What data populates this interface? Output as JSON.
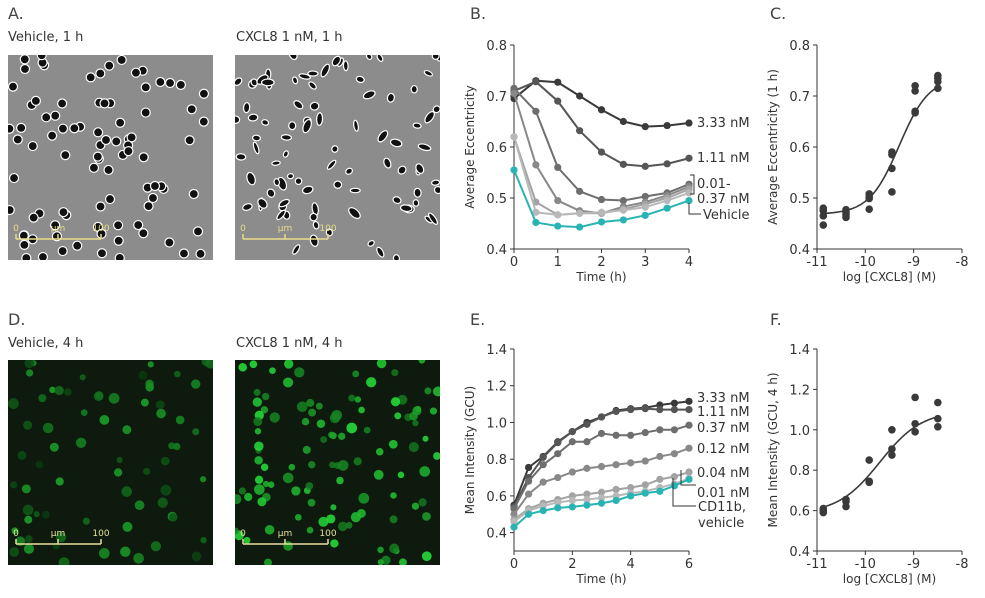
{
  "panels": {
    "A": {
      "label": "A.",
      "left_caption": "Vehicle, 1 h",
      "right_caption": "CXCL8 1 nM, 1 h",
      "scale_bar": {
        "start": "0",
        "unit": "µm",
        "end": "100"
      }
    },
    "D": {
      "label": "D.",
      "left_caption": "Vehicle, 4 h",
      "right_caption": "CXCL8 1 nM, 4 h",
      "scale_bar": {
        "start": "0",
        "unit": "µm",
        "end": "100"
      }
    },
    "B": {
      "label": "B."
    },
    "C": {
      "label": "C."
    },
    "E": {
      "label": "E."
    },
    "F": {
      "label": "F."
    }
  },
  "colors": {
    "s333": "#3a3a3a",
    "s111": "#555555",
    "s037": "#6e6e6e",
    "s012": "#888888",
    "s004": "#a3a3a3",
    "s001": "#b8b8b8",
    "vehicle": "#2ab3b3",
    "fit": "#3a3a3a",
    "points": "#3a3a3a"
  },
  "chart_data": [
    {
      "id": "B",
      "type": "line",
      "xlabel": "Time (h)",
      "ylabel": "Average Eccentricity",
      "xlim": [
        0,
        4
      ],
      "ylim": [
        0.4,
        0.8
      ],
      "xticks": [
        "0",
        "1",
        "2",
        "3",
        "4"
      ],
      "yticks": [
        "0.4",
        "0.5",
        "0.6",
        "0.7",
        "0.8"
      ],
      "x": [
        0,
        0.5,
        1,
        1.5,
        2,
        2.5,
        3,
        3.5,
        4
      ],
      "series": [
        {
          "name": "3.33 nM",
          "color": "#3a3a3a",
          "values": [
            0.695,
            0.73,
            0.727,
            0.7,
            0.673,
            0.65,
            0.64,
            0.642,
            0.647
          ]
        },
        {
          "name": "1.11 nM",
          "color": "#555555",
          "values": [
            0.71,
            0.728,
            0.69,
            0.632,
            0.59,
            0.566,
            0.562,
            0.567,
            0.578
          ]
        },
        {
          "color": "#6e6e6e",
          "values": [
            0.715,
            0.67,
            0.56,
            0.513,
            0.497,
            0.495,
            0.503,
            0.51,
            0.527
          ]
        },
        {
          "color": "#888888",
          "values": [
            0.705,
            0.565,
            0.495,
            0.475,
            0.47,
            0.483,
            0.492,
            0.505,
            0.522
          ]
        },
        {
          "color": "#a3a3a3",
          "values": [
            0.62,
            0.492,
            0.467,
            0.47,
            0.47,
            0.478,
            0.488,
            0.5,
            0.517
          ]
        },
        {
          "color": "#b8b8b8",
          "values": [
            0.62,
            0.472,
            0.467,
            0.47,
            0.472,
            0.476,
            0.482,
            0.495,
            0.51
          ]
        },
        {
          "name": "Vehicle",
          "color": "#2ab3b3",
          "values": [
            0.555,
            0.452,
            0.445,
            0.443,
            0.453,
            0.457,
            0.466,
            0.48,
            0.495
          ]
        }
      ],
      "annotations": [
        "3.33 nM",
        "1.11 nM",
        "0.01-",
        "0.37 nM",
        "Vehicle"
      ]
    },
    {
      "id": "C",
      "type": "scatter",
      "xlabel": "log [CXCL8] (M)",
      "ylabel": "Average Eccentricity (1 h)",
      "xlim": [
        -11,
        -8
      ],
      "ylim": [
        0.4,
        0.8
      ],
      "xticks": [
        "-11",
        "-10",
        "-9",
        "-8"
      ],
      "yticks": [
        "0.4",
        "0.5",
        "0.6",
        "0.7",
        "0.8"
      ],
      "points": [
        [
          -10.87,
          0.48
        ],
        [
          -10.87,
          0.475
        ],
        [
          -10.87,
          0.465
        ],
        [
          -10.87,
          0.447
        ],
        [
          -10.4,
          0.477
        ],
        [
          -10.4,
          0.472
        ],
        [
          -10.4,
          0.467
        ],
        [
          -10.4,
          0.462
        ],
        [
          -9.92,
          0.508
        ],
        [
          -9.92,
          0.503
        ],
        [
          -9.92,
          0.499
        ],
        [
          -9.92,
          0.478
        ],
        [
          -9.45,
          0.59
        ],
        [
          -9.45,
          0.585
        ],
        [
          -9.45,
          0.558
        ],
        [
          -9.45,
          0.512
        ],
        [
          -8.97,
          0.72
        ],
        [
          -8.97,
          0.71
        ],
        [
          -8.97,
          0.67
        ],
        [
          -8.97,
          0.667
        ],
        [
          -8.5,
          0.74
        ],
        [
          -8.5,
          0.735
        ],
        [
          -8.5,
          0.728
        ],
        [
          -8.5,
          0.715
        ]
      ],
      "fit": {
        "bottom": 0.468,
        "top": 0.737,
        "logEC50": -9.3,
        "hill": 1.4,
        "range": [
          -10.87,
          -8.5
        ]
      }
    },
    {
      "id": "E",
      "type": "line",
      "xlabel": "Time (h)",
      "ylabel": "Mean Intensity (GCU)",
      "xlim": [
        0,
        6
      ],
      "ylim": [
        0.3,
        1.4
      ],
      "xticks": [
        "0",
        "2",
        "4",
        "6"
      ],
      "yticks": [
        "0.4",
        "0.6",
        "0.8",
        "1.0",
        "1.2",
        "1.4"
      ],
      "x": [
        0,
        0.5,
        1,
        1.5,
        2,
        2.5,
        3,
        3.5,
        4,
        4.5,
        5,
        5.5,
        6
      ],
      "series": [
        {
          "name": "3.33 nM",
          "color": "#3a3a3a",
          "values": [
            0.55,
            0.755,
            0.815,
            0.895,
            0.95,
            1.0,
            1.03,
            1.065,
            1.075,
            1.08,
            1.095,
            1.105,
            1.115
          ]
        },
        {
          "name": "1.11 nM",
          "color": "#555555",
          "values": [
            0.54,
            0.7,
            0.81,
            0.89,
            0.95,
            0.99,
            1.03,
            1.06,
            1.07,
            1.075,
            1.07,
            1.07,
            1.07
          ]
        },
        {
          "name": "0.37 nM",
          "color": "#6e6e6e",
          "values": [
            0.53,
            0.68,
            0.77,
            0.83,
            0.895,
            0.895,
            0.94,
            0.93,
            0.93,
            0.945,
            0.96,
            0.96,
            0.985
          ]
        },
        {
          "name": "0.12 nM",
          "color": "#888888",
          "values": [
            0.5,
            0.61,
            0.675,
            0.7,
            0.73,
            0.75,
            0.76,
            0.77,
            0.78,
            0.79,
            0.815,
            0.83,
            0.86
          ]
        },
        {
          "name": "0.04 nM",
          "color": "#a3a3a3",
          "values": [
            0.47,
            0.53,
            0.56,
            0.58,
            0.6,
            0.61,
            0.62,
            0.635,
            0.645,
            0.66,
            0.69,
            0.705,
            0.73
          ]
        },
        {
          "name": "0.01 nM",
          "color": "#b8b8b8",
          "values": [
            0.46,
            0.52,
            0.545,
            0.565,
            0.575,
            0.58,
            0.59,
            0.6,
            0.615,
            0.625,
            0.645,
            0.665,
            0.695
          ]
        },
        {
          "name": "CD11b, vehicle",
          "color": "#2ab3b3",
          "values": [
            0.43,
            0.5,
            0.52,
            0.535,
            0.54,
            0.55,
            0.56,
            0.575,
            0.6,
            0.615,
            0.625,
            0.655,
            0.69
          ]
        }
      ],
      "annotations": [
        "3.33 nM",
        "1.11 nM",
        "0.37 nM",
        "0.12 nM",
        "0.04 nM",
        "0.01 nM",
        "CD11b,",
        "vehicle"
      ]
    },
    {
      "id": "F",
      "type": "scatter",
      "xlabel": "log [CXCL8] (M)",
      "ylabel": "Mean Intensity (GCU, 4 h)",
      "xlim": [
        -11,
        -8
      ],
      "ylim": [
        0.4,
        1.4
      ],
      "xticks": [
        "-11",
        "-10",
        "-9",
        "-8"
      ],
      "yticks": [
        "0.4",
        "0.6",
        "0.8",
        "1.0",
        "1.2",
        "1.4"
      ],
      "points": [
        [
          -10.87,
          0.61
        ],
        [
          -10.87,
          0.6
        ],
        [
          -10.87,
          0.59
        ],
        [
          -10.4,
          0.655
        ],
        [
          -10.4,
          0.645
        ],
        [
          -10.4,
          0.62
        ],
        [
          -9.92,
          0.85
        ],
        [
          -9.92,
          0.745
        ],
        [
          -9.92,
          0.74
        ],
        [
          -9.45,
          1.0
        ],
        [
          -9.45,
          0.905
        ],
        [
          -9.45,
          0.875
        ],
        [
          -8.97,
          1.16
        ],
        [
          -8.97,
          1.03
        ],
        [
          -8.97,
          0.99
        ],
        [
          -8.5,
          1.135
        ],
        [
          -8.5,
          1.055
        ],
        [
          -8.5,
          1.015
        ]
      ],
      "fit": {
        "bottom": 0.585,
        "top": 1.095,
        "logEC50": -9.7,
        "hill": 1.0,
        "range": [
          -10.87,
          -8.5
        ]
      }
    }
  ]
}
